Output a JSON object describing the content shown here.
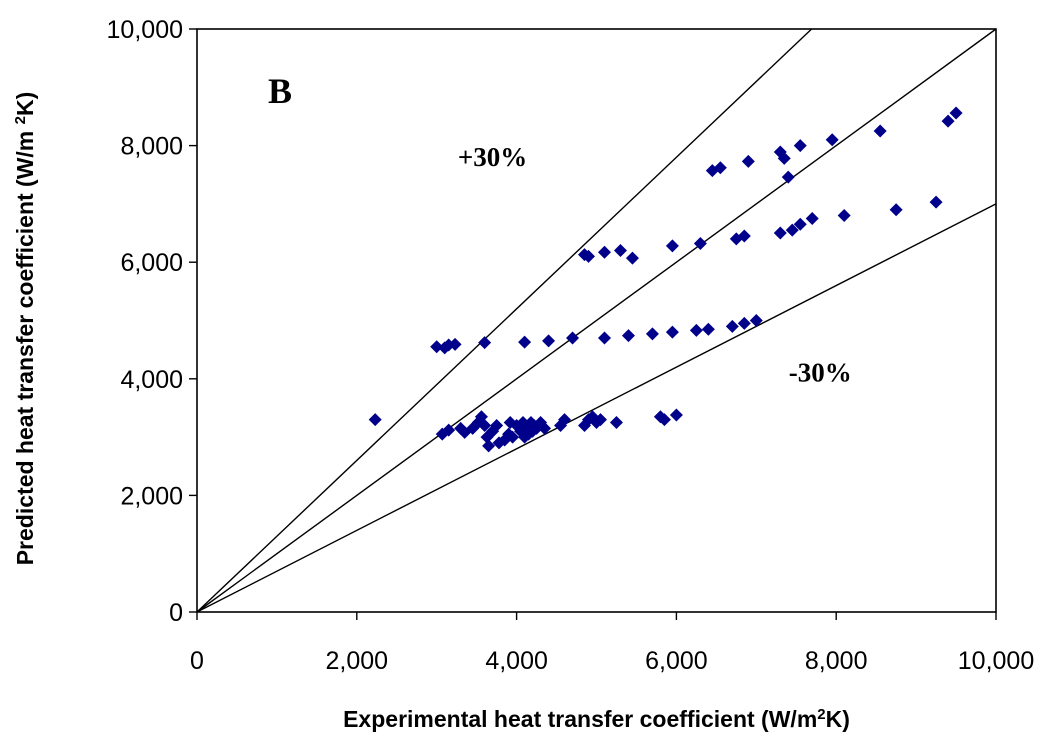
{
  "chart_data": {
    "type": "scatter",
    "title": "",
    "panel_label": "B",
    "xlabel": {
      "text": "Experimental heat transfer coefficient (W/m",
      "sup": "2",
      "after": "K)"
    },
    "ylabel": {
      "text": "Predicted heat transfer coefficient (W/m ",
      "sup": "2",
      "after": "K)"
    },
    "xlim": [
      0,
      10000
    ],
    "ylim": [
      0,
      10000
    ],
    "x_ticks": [
      0,
      2000,
      4000,
      6000,
      8000,
      10000
    ],
    "x_tick_labels": [
      "0",
      "2,000",
      "4,000",
      "6,000",
      "8,000",
      "10,000"
    ],
    "y_ticks": [
      0,
      2000,
      4000,
      6000,
      8000,
      10000
    ],
    "y_tick_labels": [
      "0",
      "2,000",
      "4,000",
      "6,000",
      "8,000",
      "10,000"
    ],
    "grid": false,
    "legend": "none",
    "marker": "diamond",
    "marker_color": "#00008B",
    "reference_lines": [
      {
        "name": "+30%",
        "slope": 1.3
      },
      {
        "name": "parity",
        "slope": 1.0
      },
      {
        "name": "-30%",
        "slope": 0.7
      }
    ],
    "annotations": [
      {
        "text": "+30%",
        "x": 3700,
        "y": 7650
      },
      {
        "text": "-30%",
        "x": 7800,
        "y": 3950
      }
    ],
    "series": [
      {
        "points": [
          [
            2230,
            3300
          ],
          [
            3000,
            4550
          ],
          [
            3100,
            4530
          ],
          [
            3150,
            4580
          ],
          [
            3230,
            4590
          ],
          [
            3600,
            4620
          ],
          [
            3070,
            3050
          ],
          [
            3150,
            3120
          ],
          [
            3300,
            3150
          ],
          [
            3350,
            3080
          ],
          [
            3450,
            3150
          ],
          [
            3520,
            3250
          ],
          [
            3560,
            3350
          ],
          [
            3600,
            3200
          ],
          [
            3630,
            3000
          ],
          [
            3650,
            2850
          ],
          [
            3700,
            3100
          ],
          [
            3750,
            3200
          ],
          [
            3780,
            2900
          ],
          [
            3850,
            2950
          ],
          [
            3900,
            3050
          ],
          [
            3920,
            3250
          ],
          [
            3950,
            3000
          ],
          [
            4000,
            3200
          ],
          [
            4050,
            3100
          ],
          [
            4080,
            3250
          ],
          [
            4100,
            3000
          ],
          [
            4120,
            3150
          ],
          [
            4150,
            3050
          ],
          [
            4180,
            3250
          ],
          [
            4200,
            3100
          ],
          [
            4220,
            3200
          ],
          [
            4250,
            3150
          ],
          [
            4300,
            3250
          ],
          [
            4350,
            3150
          ],
          [
            4550,
            3200
          ],
          [
            4600,
            3300
          ],
          [
            4850,
            3200
          ],
          [
            4900,
            3300
          ],
          [
            4950,
            3350
          ],
          [
            5000,
            3250
          ],
          [
            5050,
            3300
          ],
          [
            5250,
            3250
          ],
          [
            5800,
            3350
          ],
          [
            5850,
            3300
          ],
          [
            6000,
            3380
          ],
          [
            4100,
            4630
          ],
          [
            4400,
            4650
          ],
          [
            4700,
            4700
          ],
          [
            5100,
            4700
          ],
          [
            5400,
            4740
          ],
          [
            5700,
            4770
          ],
          [
            5950,
            4800
          ],
          [
            6250,
            4830
          ],
          [
            6400,
            4850
          ],
          [
            6700,
            4900
          ],
          [
            6850,
            4950
          ],
          [
            7000,
            5000
          ],
          [
            4850,
            6130
          ],
          [
            4900,
            6100
          ],
          [
            5100,
            6170
          ],
          [
            5300,
            6200
          ],
          [
            5450,
            6070
          ],
          [
            5950,
            6280
          ],
          [
            6300,
            6320
          ],
          [
            6750,
            6400
          ],
          [
            6850,
            6450
          ],
          [
            7300,
            6500
          ],
          [
            7450,
            6550
          ],
          [
            7550,
            6650
          ],
          [
            7700,
            6750
          ],
          [
            8100,
            6800
          ],
          [
            8750,
            6900
          ],
          [
            9250,
            7030
          ],
          [
            6450,
            7570
          ],
          [
            6550,
            7620
          ],
          [
            6900,
            7730
          ],
          [
            7300,
            7890
          ],
          [
            7350,
            7780
          ],
          [
            7400,
            7460
          ],
          [
            7550,
            8000
          ],
          [
            7950,
            8100
          ],
          [
            8550,
            8250
          ],
          [
            9400,
            8420
          ],
          [
            9500,
            8560
          ]
        ]
      }
    ]
  }
}
